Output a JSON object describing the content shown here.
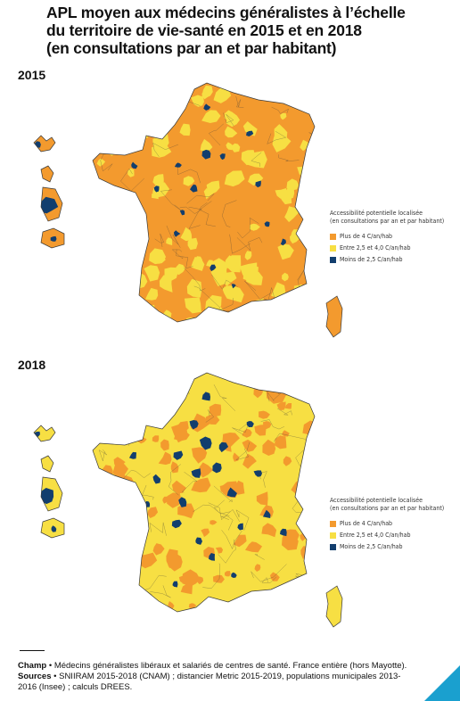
{
  "title": [
    "APL moyen aux médecins généralistes à l’échelle",
    "du territoire de vie-santé en 2015 et en 2018",
    "(en consultations par an et par habitant)"
  ],
  "maps": [
    {
      "year": "2015",
      "dominant": "mixed"
    },
    {
      "year": "2018",
      "dominant": "yellow"
    }
  ],
  "legend": {
    "title": "Accessibilité potentielle localisée",
    "subtitle": "(en consultations par an et par habitant)",
    "items": [
      {
        "label": "Plus de 4 C/an/hab",
        "color": "#f39a2e"
      },
      {
        "label": "Entre 2,5 et 4,0 C/an/hab",
        "color": "#f7df43"
      },
      {
        "label": "Moins de 2,5 C/an/hab",
        "color": "#123e6e"
      }
    ]
  },
  "footer": {
    "champ_label": "Champ",
    "champ_text": "Médecins généralistes libéraux et salariés de centres de santé. France entière (hors Mayotte).",
    "sources_label": "Sources",
    "sources_text": "SNIIRAM 2015-2018 (CNAM) ; distancier Metric 2015-2019, populations municipales 2013-2016 (Insee) ; calculs DREES."
  },
  "colors": {
    "orange": "#f39a2e",
    "yellow": "#f7df43",
    "navy": "#123e6e",
    "border": "#3a3a3a",
    "corner": "#1aa0cf"
  }
}
